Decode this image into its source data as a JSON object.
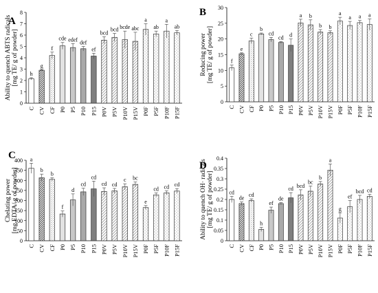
{
  "chart_data": [
    {
      "type": "bar",
      "panel": "A",
      "ylabel_lines": [
        "Ability to quench ABTS radicals",
        "[mg TE/ g of powder]"
      ],
      "ylim": [
        0,
        8
      ],
      "yticks": [
        0,
        1,
        2,
        3,
        4,
        5,
        6,
        7,
        8
      ],
      "ytick_labels": [
        "0",
        "1",
        "2",
        "3",
        "4",
        "5",
        "6",
        "7",
        "8"
      ],
      "categories": [
        "C",
        "CV",
        "CF",
        "P0",
        "P5",
        "P10",
        "P15",
        "P0V",
        "P5V",
        "P10V",
        "P15V",
        "P0F",
        "P5F",
        "P10F",
        "P15F"
      ],
      "values": [
        2.15,
        2.9,
        4.2,
        5.05,
        4.9,
        4.8,
        4.15,
        5.55,
        5.8,
        5.6,
        5.45,
        6.5,
        6.1,
        6.35,
        6.2
      ],
      "errors": [
        0.1,
        0.05,
        0.3,
        0.3,
        0.35,
        0.2,
        0.25,
        0.3,
        0.35,
        0.75,
        0.8,
        0.5,
        0.25,
        0.6,
        0.2
      ],
      "letters": [
        "h",
        "g",
        "f",
        "cde",
        "edef",
        "def",
        "ef",
        "bcd",
        "bcd",
        "bcde",
        "abc",
        "a",
        "ab",
        "a",
        "ab"
      ]
    },
    {
      "type": "bar",
      "panel": "B",
      "ylabel_lines": [
        "Reducing power",
        "[mg TE/ g of powder]"
      ],
      "ylim": [
        0,
        30
      ],
      "yticks": [
        0,
        5,
        10,
        15,
        20,
        25,
        30
      ],
      "ytick_labels": [
        "0",
        "5",
        "10",
        "15",
        "20",
        "25",
        "30"
      ],
      "categories": [
        "C",
        "CV",
        "CF",
        "P0",
        "P5",
        "P10",
        "P15",
        "P0V",
        "P5V",
        "P10V",
        "P15V",
        "P0F",
        "P5F",
        "P10F",
        "P15F"
      ],
      "values": [
        10.8,
        15.3,
        19.4,
        21.6,
        19.8,
        18.9,
        18.0,
        25.1,
        24.5,
        22.2,
        22.0,
        25.7,
        24.3,
        25.2,
        24.6
      ],
      "errors": [
        0.9,
        0.3,
        0.9,
        0.3,
        0.7,
        0.3,
        2.0,
        1.2,
        1.6,
        0.8,
        0.6,
        1.2,
        1.3,
        0.7,
        1.8
      ],
      "letters": [
        "f",
        "e",
        "c",
        "b",
        "cd",
        "cd",
        "d",
        "a",
        "b",
        "b",
        "b",
        "a",
        "a",
        "a",
        "a"
      ]
    },
    {
      "type": "bar",
      "panel": "C",
      "ylabel_lines": [
        "Chelating power",
        "[mg EDTA/ g of powder]"
      ],
      "ylim": [
        0,
        400
      ],
      "yticks": [
        0,
        50,
        100,
        150,
        200,
        250,
        300,
        350,
        400
      ],
      "ytick_labels": [
        "0",
        "50",
        "100",
        "150",
        "200",
        "250",
        "300",
        "350",
        "400"
      ],
      "categories": [
        "C",
        "CV",
        "CF",
        "P0",
        "P5",
        "P10",
        "P15",
        "P0V",
        "P5V",
        "P10V",
        "P15V",
        "P0F",
        "P5F",
        "P10F",
        "P15F"
      ],
      "values": [
        360,
        313,
        305,
        133,
        203,
        243,
        258,
        245,
        248,
        268,
        280,
        165,
        228,
        238,
        247
      ],
      "errors": [
        25,
        18,
        8,
        15,
        30,
        18,
        38,
        18,
        12,
        15,
        12,
        10,
        10,
        10,
        12
      ],
      "letters": [
        "a",
        "b",
        "b",
        "f",
        "d",
        "cd",
        "cd",
        "cd",
        "cd",
        "c",
        "bc",
        "e",
        "cd",
        "cd",
        "cd"
      ]
    },
    {
      "type": "bar",
      "panel": "D",
      "ylabel_lines": [
        "Ability to quench OH· radicals",
        "[mg TE/ g of powder]"
      ],
      "ylim": [
        0,
        0.4
      ],
      "yticks": [
        0,
        0.05,
        0.1,
        0.15,
        0.2,
        0.25,
        0.3,
        0.35,
        0.4
      ],
      "ytick_labels": [
        "0",
        "0.05",
        "0.1",
        "0.15",
        "0.2",
        "0.25",
        "0.3",
        "0.35",
        "0.4"
      ],
      "categories": [
        "C",
        "CV",
        "CF",
        "P0",
        "P5",
        "P10",
        "P15",
        "P0V",
        "P5V",
        "P10V",
        "P15V",
        "P0F",
        "P5F",
        "P10F",
        "P15F"
      ],
      "values": [
        0.2,
        0.18,
        0.195,
        0.055,
        0.148,
        0.18,
        0.208,
        0.222,
        0.24,
        0.275,
        0.342,
        0.11,
        0.165,
        0.2,
        0.215
      ],
      "errors": [
        0.015,
        0.008,
        0.008,
        0.01,
        0.015,
        0.005,
        0.025,
        0.025,
        0.025,
        0.012,
        0.03,
        0.025,
        0.03,
        0.02,
        0.01
      ],
      "letters": [
        "cd",
        "de",
        "cd",
        "h",
        "ef",
        "de",
        "cd",
        "bcd",
        "bc",
        "b",
        "a",
        "g",
        "ef",
        "bcd",
        "cd"
      ]
    }
  ]
}
